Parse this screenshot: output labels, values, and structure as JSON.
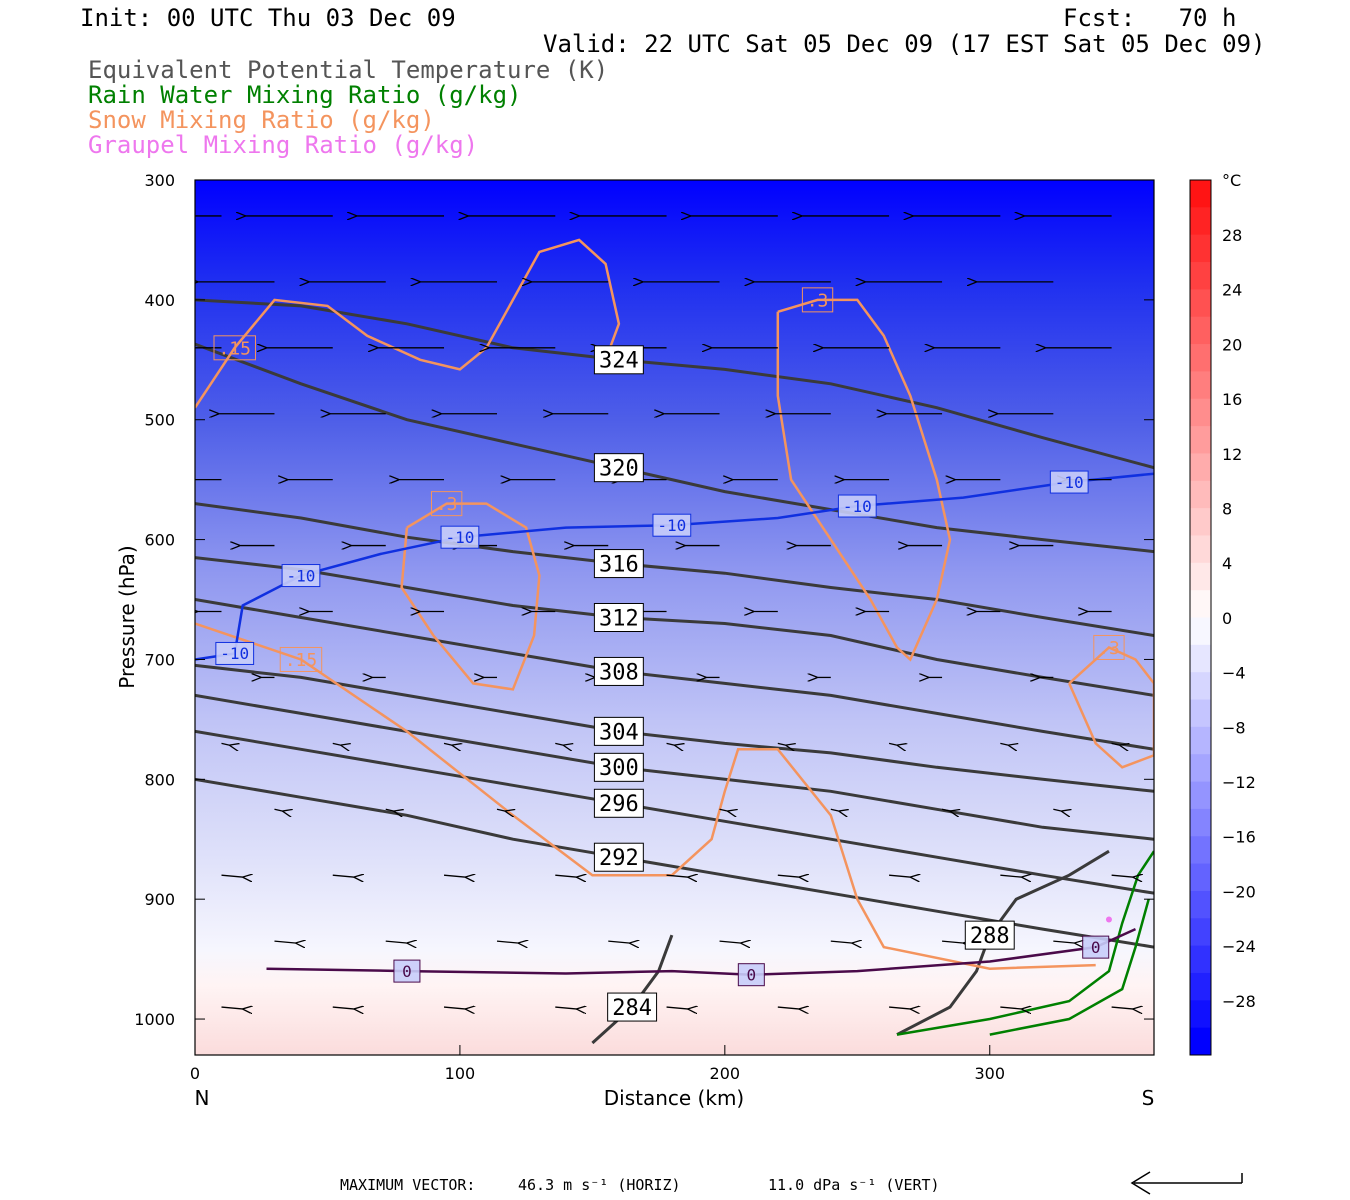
{
  "header": {
    "init": "Init: 00 UTC Thu 03 Dec 09",
    "fcst": "Fcst:   70 h",
    "valid": "Valid: 22 UTC Sat 05 Dec 09 (17 EST Sat 05 Dec 09)",
    "fields": [
      {
        "label": "Equivalent Potential Temperature (K)",
        "color": "#555555"
      },
      {
        "label": "Rain Water Mixing Ratio (g/kg)",
        "color": "#008000"
      },
      {
        "label": "Snow Mixing Ratio (g/kg)",
        "color": "#F4945E"
      },
      {
        "label": "Graupel Mixing Ratio (g/kg)",
        "color": "#EE77EE"
      }
    ]
  },
  "footer": {
    "max_vector_label": "MAXIMUM VECTOR:",
    "horiz": "46.3 m s⁻¹ (HORIZ)",
    "vert": "11.0 dPa s⁻¹ (VERT)"
  },
  "chart_data": {
    "type": "heatmap",
    "title": "",
    "xlabel": "Distance (km)",
    "ylabel": "Pressure (hPa)",
    "xlim": [
      0,
      362
    ],
    "ylim": [
      1030,
      300
    ],
    "x_ticks": [
      0,
      100,
      200,
      300
    ],
    "y_ticks": [
      300,
      400,
      500,
      600,
      700,
      800,
      900,
      1000
    ],
    "x_end_labels": {
      "left": "N",
      "right": "S"
    },
    "colorbar": {
      "unit": "°C",
      "labels": [
        28,
        24,
        20,
        16,
        12,
        8,
        4,
        0,
        -4,
        -8,
        -12,
        -16,
        -20,
        -24,
        -28
      ],
      "cold_color": "#0000FF",
      "warm_color": "#FF0000"
    },
    "theta_e_contours": [
      {
        "label": "324",
        "points": [
          [
            0,
            400
          ],
          [
            40,
            405
          ],
          [
            80,
            420
          ],
          [
            120,
            440
          ],
          [
            160,
            450
          ],
          [
            200,
            458
          ],
          [
            240,
            470
          ],
          [
            280,
            490
          ],
          [
            320,
            515
          ],
          [
            362,
            540
          ]
        ]
      },
      {
        "label": "320",
        "points": [
          [
            0,
            437
          ],
          [
            40,
            470
          ],
          [
            80,
            500
          ],
          [
            120,
            520
          ],
          [
            160,
            540
          ],
          [
            200,
            560
          ],
          [
            240,
            575
          ],
          [
            280,
            590
          ],
          [
            320,
            600
          ],
          [
            362,
            610
          ]
        ]
      },
      {
        "label": "316",
        "points": [
          [
            0,
            570
          ],
          [
            40,
            582
          ],
          [
            80,
            598
          ],
          [
            120,
            610
          ],
          [
            160,
            620
          ],
          [
            200,
            628
          ],
          [
            240,
            640
          ],
          [
            280,
            650
          ],
          [
            320,
            665
          ],
          [
            362,
            680
          ]
        ]
      },
      {
        "label": "312",
        "points": [
          [
            0,
            615
          ],
          [
            40,
            625
          ],
          [
            80,
            640
          ],
          [
            120,
            655
          ],
          [
            160,
            665
          ],
          [
            200,
            670
          ],
          [
            240,
            680
          ],
          [
            280,
            700
          ],
          [
            320,
            715
          ],
          [
            362,
            730
          ]
        ]
      },
      {
        "label": "308",
        "points": [
          [
            0,
            650
          ],
          [
            40,
            665
          ],
          [
            80,
            680
          ],
          [
            120,
            695
          ],
          [
            160,
            710
          ],
          [
            200,
            720
          ],
          [
            240,
            730
          ],
          [
            280,
            745
          ],
          [
            320,
            760
          ],
          [
            362,
            775
          ]
        ]
      },
      {
        "label": "304",
        "points": [
          [
            0,
            705
          ],
          [
            40,
            715
          ],
          [
            80,
            730
          ],
          [
            120,
            745
          ],
          [
            160,
            760
          ],
          [
            200,
            770
          ],
          [
            240,
            778
          ],
          [
            280,
            790
          ],
          [
            320,
            800
          ],
          [
            362,
            810
          ]
        ]
      },
      {
        "label": "300",
        "points": [
          [
            0,
            730
          ],
          [
            40,
            745
          ],
          [
            80,
            760
          ],
          [
            120,
            775
          ],
          [
            160,
            790
          ],
          [
            200,
            800
          ],
          [
            240,
            810
          ],
          [
            280,
            825
          ],
          [
            320,
            840
          ],
          [
            362,
            850
          ]
        ]
      },
      {
        "label": "296",
        "points": [
          [
            0,
            760
          ],
          [
            40,
            775
          ],
          [
            80,
            790
          ],
          [
            120,
            805
          ],
          [
            160,
            820
          ],
          [
            200,
            835
          ],
          [
            240,
            850
          ],
          [
            280,
            865
          ],
          [
            320,
            880
          ],
          [
            362,
            895
          ]
        ]
      },
      {
        "label": "292",
        "points": [
          [
            0,
            800
          ],
          [
            40,
            815
          ],
          [
            80,
            830
          ],
          [
            120,
            850
          ],
          [
            160,
            865
          ],
          [
            200,
            880
          ],
          [
            240,
            895
          ],
          [
            280,
            910
          ],
          [
            320,
            925
          ],
          [
            362,
            940
          ]
        ]
      },
      {
        "label": "288",
        "points": [
          [
            265,
            1013
          ],
          [
            285,
            990
          ],
          [
            295,
            960
          ],
          [
            300,
            930
          ],
          [
            310,
            900
          ],
          [
            330,
            880
          ],
          [
            345,
            860
          ]
        ]
      },
      {
        "label": "284",
        "points": [
          [
            150,
            1020
          ],
          [
            165,
            990
          ],
          [
            175,
            960
          ],
          [
            180,
            930
          ]
        ]
      }
    ],
    "temperature_contours": [
      {
        "label": "-10",
        "points": [
          [
            0,
            700
          ],
          [
            15,
            695
          ],
          [
            18,
            655
          ],
          [
            40,
            630
          ],
          [
            70,
            612
          ],
          [
            100,
            598
          ],
          [
            140,
            590
          ],
          [
            180,
            588
          ],
          [
            220,
            582
          ],
          [
            250,
            572
          ],
          [
            290,
            565
          ],
          [
            330,
            552
          ],
          [
            362,
            545
          ]
        ]
      },
      {
        "label": "0",
        "points": [
          [
            27,
            958
          ],
          [
            80,
            960
          ],
          [
            140,
            962
          ],
          [
            180,
            960
          ],
          [
            210,
            963
          ],
          [
            250,
            960
          ],
          [
            300,
            952
          ],
          [
            340,
            940
          ],
          [
            355,
            925
          ]
        ]
      }
    ],
    "snow_contours": [
      {
        "label": ".15",
        "points": [
          [
            0,
            490
          ],
          [
            15,
            440
          ],
          [
            30,
            400
          ],
          [
            50,
            405
          ],
          [
            65,
            430
          ],
          [
            85,
            450
          ],
          [
            100,
            458
          ],
          [
            110,
            440
          ],
          [
            120,
            400
          ],
          [
            130,
            360
          ],
          [
            145,
            350
          ],
          [
            155,
            370
          ],
          [
            160,
            420
          ],
          [
            155,
            450
          ]
        ]
      },
      {
        "label": ".3",
        "points": [
          [
            80,
            590
          ],
          [
            95,
            570
          ],
          [
            110,
            570
          ],
          [
            125,
            590
          ],
          [
            130,
            630
          ],
          [
            128,
            680
          ],
          [
            120,
            725
          ],
          [
            105,
            720
          ],
          [
            90,
            680
          ],
          [
            78,
            640
          ],
          [
            80,
            590
          ]
        ]
      },
      {
        "label": ".15",
        "points": [
          [
            0,
            670
          ],
          [
            40,
            700
          ],
          [
            80,
            760
          ],
          [
            120,
            830
          ],
          [
            150,
            880
          ],
          [
            180,
            880
          ],
          [
            195,
            850
          ],
          [
            200,
            810
          ],
          [
            205,
            775
          ],
          [
            220,
            775
          ],
          [
            240,
            830
          ],
          [
            250,
            900
          ],
          [
            260,
            940
          ],
          [
            300,
            958
          ],
          [
            340,
            955
          ]
        ]
      },
      {
        "label": ".3",
        "points": [
          [
            220,
            410
          ],
          [
            235,
            400
          ],
          [
            250,
            400
          ],
          [
            260,
            430
          ],
          [
            270,
            480
          ],
          [
            280,
            550
          ],
          [
            285,
            600
          ],
          [
            280,
            650
          ],
          [
            270,
            700
          ],
          [
            265,
            690
          ],
          [
            255,
            650
          ],
          [
            240,
            600
          ],
          [
            225,
            550
          ],
          [
            220,
            480
          ],
          [
            220,
            410
          ]
        ]
      },
      {
        "label": ".3",
        "points": [
          [
            330,
            720
          ],
          [
            345,
            690
          ],
          [
            355,
            700
          ],
          [
            362,
            720
          ],
          [
            362,
            780
          ],
          [
            350,
            790
          ],
          [
            340,
            770
          ],
          [
            330,
            720
          ]
        ]
      }
    ],
    "rain_contours": [
      {
        "label": "",
        "points": [
          [
            265,
            1013
          ],
          [
            300,
            1000
          ],
          [
            330,
            985
          ],
          [
            345,
            960
          ],
          [
            350,
            920
          ],
          [
            356,
            880
          ],
          [
            362,
            860
          ]
        ]
      },
      {
        "label": "",
        "points": [
          [
            300,
            1013
          ],
          [
            330,
            1000
          ],
          [
            350,
            975
          ],
          [
            355,
            940
          ],
          [
            360,
            900
          ]
        ]
      }
    ],
    "graupel_points": [
      [
        345,
        917
      ]
    ],
    "wind_note": "horizontal wind vectors; easterly-to-westerly flow aloft"
  }
}
